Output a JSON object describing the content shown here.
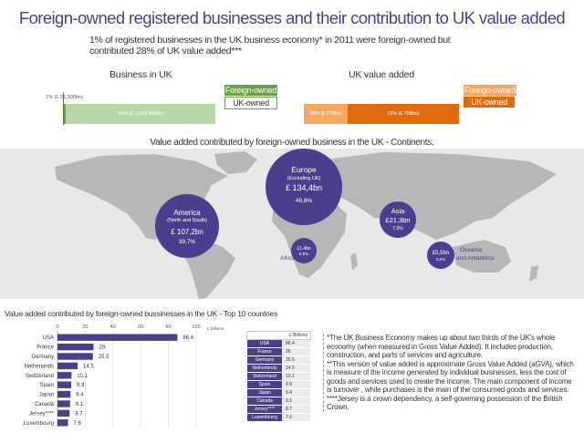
{
  "title": "Foreign-owned registered businesses and their contribution to UK value added",
  "subtitle": "1% of registered businesses in the UK business economy* in 2011 were foreign-owned but contributed 28% of UK value added***",
  "colors": {
    "purple": "#4a3f8c",
    "green_dark": "#6e9e48",
    "green_light": "#b6d7a8",
    "orange_dark": "#e06b0f",
    "orange_light": "#f6a860",
    "map_land": "#b7b7b7",
    "map_sea": "#e8e8e8"
  },
  "business_chart": {
    "title": "Business in UK",
    "legend": {
      "foreign": "Foreign-owned",
      "uk": "UK-owned"
    },
    "foreign_label": "1% (£ 21,300bn)",
    "uk_label": "99% (£ 1,920,400bn)",
    "foreign_pct": 1,
    "uk_pct": 99
  },
  "value_chart": {
    "title": "UK value added",
    "legend": {
      "foreign": "Foreign-owned",
      "uk": "UK-owned"
    },
    "foreign_label": "28% (£ 278bn)",
    "uk_label": "72% (£ 708bn)",
    "foreign_pct": 28,
    "uk_pct": 72
  },
  "map": {
    "title": "Value added contributed by foreign-owned business in the UK - Continents.",
    "regions": [
      {
        "name": "Europe",
        "sub": "(Excluding UK)",
        "value": "£ 134,4bn",
        "pct": "49,8%",
        "icon": "europe-bubble"
      },
      {
        "name": "America",
        "sub": "(North and South)",
        "value": "£ 107,2bn",
        "pct": "39,7%",
        "icon": "america-bubble"
      },
      {
        "name": "Asia",
        "sub": "",
        "value": "£21,3bn",
        "pct": "7,9%",
        "icon": "asia-bubble"
      },
      {
        "name": "Africa",
        "sub": "",
        "value": "£1,4bn",
        "pct": "0,5%",
        "icon": "africa-bubble"
      },
      {
        "name": "Oceania and Antarktica",
        "sub": "",
        "value": "£5,5bn",
        "pct": "2,0%",
        "icon": "oceania-bubble"
      }
    ]
  },
  "chart_data": {
    "type": "bar",
    "orientation": "horizontal",
    "title": "Value added contributed by foreign-owned bussinesses in the UK - Top 10 countries",
    "xlabel": "£ Billions",
    "xlim": [
      0,
      100
    ],
    "xticks": [
      0,
      20,
      40,
      60,
      80,
      100
    ],
    "grid": true,
    "categories": [
      "USA",
      "France",
      "Germany",
      "Netherlands",
      "Switzerland",
      "Spain",
      "Japan",
      "Canada",
      "Jersey****",
      "Luxembourg"
    ],
    "values": [
      86.4,
      26,
      25.5,
      14.5,
      10.1,
      9.9,
      9.4,
      9.1,
      8.7,
      7.6
    ],
    "value_labels": [
      "86.4",
      "26",
      "25.5",
      "14.5",
      "10.1",
      "9.9",
      "9.4",
      "9.1",
      "8.7",
      "7.6"
    ]
  },
  "table": {
    "header": "£ Billions",
    "rows": [
      [
        "USA",
        "86.4"
      ],
      [
        "France",
        "26"
      ],
      [
        "Germany",
        "25.5"
      ],
      [
        "Netherlands",
        "14.5"
      ],
      [
        "Switzerland",
        "10.1"
      ],
      [
        "Spain",
        "9.9"
      ],
      [
        "Japan",
        "9.4"
      ],
      [
        "Canada",
        "9.1"
      ],
      [
        "Jersey****",
        "8.7"
      ],
      [
        "Luxembourg",
        "7.6"
      ]
    ]
  },
  "notes": [
    "*The UK Business Economy makes up about two thirds of the UK's whole economy (when measured in Gross Value Added). It includes production, construction, and parts of services and agriculture.",
    "**This version of value added is approximate Gross Value Added (aGVA), which is measure of the income generated by individual businesses, less the cost of goods and services used to create the income. The main component of income is turnover , while purchases is the main of the consumed goods and services.",
    "****Jersey is a crown dependency, a self-governing possession of the British Crown."
  ]
}
